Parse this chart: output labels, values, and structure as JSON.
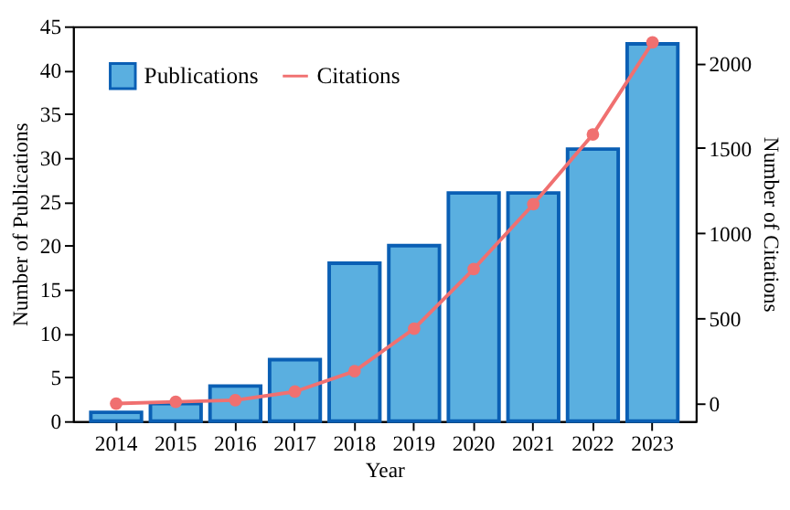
{
  "chart_data": {
    "type": "bar",
    "xlabel": "Year",
    "ylabel": "Number of Publications",
    "y2label": "Number of Citations",
    "categories": [
      "2014",
      "2015",
      "2016",
      "2017",
      "2018",
      "2019",
      "2020",
      "2021",
      "2022",
      "2023"
    ],
    "series": [
      {
        "name": "Publications",
        "color": "#5aafe0",
        "values": [
          1,
          2,
          4,
          7,
          18,
          20,
          26,
          26,
          31,
          43
        ]
      },
      {
        "name": "Citations",
        "type": "line",
        "axis": "y2",
        "color": "#f07070",
        "marker": "circle",
        "values": [
          0,
          10,
          20,
          70,
          190,
          440,
          790,
          1170,
          1580,
          2120
        ]
      }
    ],
    "ylim": [
      0,
      45
    ],
    "yticks": [
      0,
      5,
      10,
      15,
      20,
      25,
      30,
      35,
      40,
      45
    ],
    "y2lim": [
      -103,
      2215
    ],
    "y2ticks": [
      0,
      500,
      1000,
      1500,
      2000
    ],
    "grid": false,
    "legend": "top left"
  }
}
